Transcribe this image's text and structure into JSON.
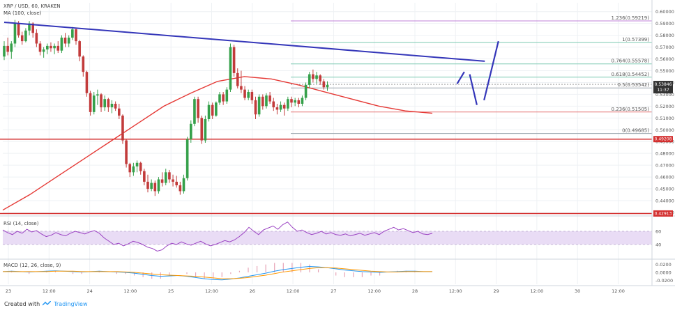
{
  "header": {
    "symbol": "XRP / USD, 60, KRAKEN",
    "ma_label": "MA (100, close)"
  },
  "footer": {
    "created_with": "Created with",
    "brand": "TradingView"
  },
  "colors": {
    "up": "#35a04a",
    "down": "#c23b3b",
    "ma": "#e53935",
    "trendline": "#3436b9",
    "support": "#d32f2f",
    "fib": "#7ac9b1",
    "fib_top": "#c080d8",
    "rsi": "#9a41c2",
    "rsi_band": "#e9dcf5",
    "macd": "#2196f3",
    "signal": "#ff9800",
    "hist_pos": "#e7a4b7",
    "hist_neg": "#e7a4b7",
    "price_tag": "#333333",
    "level_tag": "#d32f2f",
    "grid": "#eef1f4"
  },
  "chart_data": [
    {
      "type": "candlestick",
      "title": "XRP / USD, 60, KRAKEN",
      "indicator": "MA (100, close)",
      "ylim": [
        0.4288,
        0.6075
      ],
      "y_ticks": [
        "0.60000",
        "0.59000",
        "0.58000",
        "0.57000",
        "0.56000",
        "0.55000",
        "0.54000",
        "0.53000",
        "0.52000",
        "0.51000",
        "0.50000",
        "0.49000",
        "0.48000",
        "0.47000",
        "0.46000",
        "0.45000",
        "0.44000",
        "0.43000"
      ],
      "x_ticks": [
        "23",
        "12:00",
        "24",
        "12:00",
        "25",
        "12:00",
        "26",
        "12:00",
        "27",
        "12:00",
        "28",
        "12:00",
        "29",
        "12:00",
        "30",
        "12:00"
      ],
      "candles": [
        [
          0.562,
          0.575,
          0.559,
          0.571
        ],
        [
          0.571,
          0.578,
          0.563,
          0.566
        ],
        [
          0.566,
          0.575,
          0.56,
          0.573
        ],
        [
          0.573,
          0.593,
          0.57,
          0.59
        ],
        [
          0.59,
          0.592,
          0.578,
          0.58
        ],
        [
          0.58,
          0.583,
          0.572,
          0.575
        ],
        [
          0.575,
          0.586,
          0.574,
          0.584
        ],
        [
          0.584,
          0.592,
          0.58,
          0.59
        ],
        [
          0.59,
          0.591,
          0.578,
          0.582
        ],
        [
          0.582,
          0.585,
          0.57,
          0.573
        ],
        [
          0.573,
          0.575,
          0.563,
          0.566
        ],
        [
          0.566,
          0.57,
          0.561,
          0.568
        ],
        [
          0.568,
          0.573,
          0.564,
          0.571
        ],
        [
          0.571,
          0.574,
          0.566,
          0.569
        ],
        [
          0.569,
          0.573,
          0.564,
          0.571
        ],
        [
          0.571,
          0.575,
          0.565,
          0.567
        ],
        [
          0.567,
          0.58,
          0.565,
          0.578
        ],
        [
          0.578,
          0.582,
          0.57,
          0.573
        ],
        [
          0.573,
          0.58,
          0.57,
          0.578
        ],
        [
          0.578,
          0.587,
          0.576,
          0.585
        ],
        [
          0.585,
          0.586,
          0.572,
          0.575
        ],
        [
          0.575,
          0.576,
          0.558,
          0.562
        ],
        [
          0.562,
          0.563,
          0.545,
          0.549
        ],
        [
          0.549,
          0.55,
          0.528,
          0.531
        ],
        [
          0.531,
          0.533,
          0.512,
          0.515
        ],
        [
          0.515,
          0.532,
          0.513,
          0.529
        ],
        [
          0.529,
          0.534,
          0.521,
          0.53
        ],
        [
          0.53,
          0.531,
          0.515,
          0.519
        ],
        [
          0.519,
          0.529,
          0.516,
          0.526
        ],
        [
          0.526,
          0.527,
          0.515,
          0.519
        ],
        [
          0.519,
          0.525,
          0.514,
          0.522
        ],
        [
          0.522,
          0.524,
          0.516,
          0.518
        ],
        [
          0.518,
          0.522,
          0.509,
          0.512
        ],
        [
          0.512,
          0.513,
          0.488,
          0.491
        ],
        [
          0.491,
          0.492,
          0.468,
          0.471
        ],
        [
          0.471,
          0.472,
          0.46,
          0.464
        ],
        [
          0.464,
          0.472,
          0.461,
          0.469
        ],
        [
          0.469,
          0.474,
          0.464,
          0.472
        ],
        [
          0.472,
          0.473,
          0.462,
          0.465
        ],
        [
          0.465,
          0.467,
          0.453,
          0.456
        ],
        [
          0.456,
          0.462,
          0.447,
          0.45
        ],
        [
          0.45,
          0.458,
          0.448,
          0.455
        ],
        [
          0.455,
          0.457,
          0.444,
          0.448
        ],
        [
          0.448,
          0.46,
          0.446,
          0.458
        ],
        [
          0.458,
          0.464,
          0.452,
          0.455
        ],
        [
          0.455,
          0.467,
          0.453,
          0.464
        ],
        [
          0.464,
          0.466,
          0.455,
          0.458
        ],
        [
          0.458,
          0.462,
          0.452,
          0.456
        ],
        [
          0.456,
          0.461,
          0.451,
          0.453
        ],
        [
          0.453,
          0.456,
          0.445,
          0.448
        ],
        [
          0.448,
          0.462,
          0.446,
          0.459
        ],
        [
          0.459,
          0.494,
          0.457,
          0.492
        ],
        [
          0.492,
          0.508,
          0.489,
          0.505
        ],
        [
          0.505,
          0.528,
          0.503,
          0.526
        ],
        [
          0.526,
          0.528,
          0.506,
          0.51
        ],
        [
          0.51,
          0.512,
          0.488,
          0.491
        ],
        [
          0.491,
          0.512,
          0.489,
          0.509
        ],
        [
          0.509,
          0.524,
          0.507,
          0.521
        ],
        [
          0.521,
          0.523,
          0.509,
          0.512
        ],
        [
          0.512,
          0.524,
          0.511,
          0.523
        ],
        [
          0.523,
          0.532,
          0.521,
          0.53
        ],
        [
          0.53,
          0.532,
          0.521,
          0.524
        ],
        [
          0.524,
          0.536,
          0.522,
          0.534
        ],
        [
          0.534,
          0.573,
          0.532,
          0.57
        ],
        [
          0.57,
          0.572,
          0.545,
          0.548
        ],
        [
          0.548,
          0.552,
          0.535,
          0.537
        ],
        [
          0.537,
          0.55,
          0.531,
          0.534
        ],
        [
          0.534,
          0.537,
          0.525,
          0.527
        ],
        [
          0.527,
          0.534,
          0.525,
          0.532
        ],
        [
          0.532,
          0.534,
          0.522,
          0.525
        ],
        [
          0.525,
          0.528,
          0.509,
          0.513
        ],
        [
          0.513,
          0.53,
          0.511,
          0.528
        ],
        [
          0.528,
          0.53,
          0.517,
          0.52
        ],
        [
          0.52,
          0.531,
          0.518,
          0.529
        ],
        [
          0.529,
          0.532,
          0.522,
          0.524
        ],
        [
          0.524,
          0.527,
          0.516,
          0.519
        ],
        [
          0.519,
          0.522,
          0.513,
          0.517
        ],
        [
          0.517,
          0.524,
          0.515,
          0.521
        ],
        [
          0.521,
          0.523,
          0.512,
          0.518
        ],
        [
          0.518,
          0.528,
          0.516,
          0.526
        ],
        [
          0.526,
          0.528,
          0.519,
          0.523
        ],
        [
          0.523,
          0.527,
          0.52,
          0.525
        ],
        [
          0.525,
          0.527,
          0.519,
          0.522
        ],
        [
          0.522,
          0.529,
          0.52,
          0.527
        ],
        [
          0.527,
          0.54,
          0.525,
          0.538
        ],
        [
          0.538,
          0.549,
          0.535,
          0.547
        ],
        [
          0.547,
          0.551,
          0.54,
          0.543
        ],
        [
          0.543,
          0.549,
          0.539,
          0.546
        ],
        [
          0.546,
          0.547,
          0.538,
          0.541
        ],
        [
          0.541,
          0.543,
          0.534,
          0.536
        ],
        [
          0.536,
          0.541,
          0.533,
          0.538
        ]
      ],
      "ma_100": [
        0.432,
        0.445,
        0.46,
        0.475,
        0.49,
        0.505,
        0.52,
        0.531,
        0.541,
        0.545,
        0.543,
        0.538,
        0.532,
        0.526,
        0.52,
        0.516,
        0.514
      ],
      "trendline": [
        [
          0,
          0.591
        ],
        [
          95,
          0.558
        ]
      ],
      "projection": [
        [
          97,
          0.539
        ],
        [
          99,
          0.549
        ],
        [
          100.5,
          0.547
        ],
        [
          102.5,
          0.521
        ],
        [
          104.5,
          0.525
        ],
        [
          108.5,
          0.575
        ]
      ],
      "support_levels": [
        {
          "value": 0.49208,
          "label": "0.49208"
        },
        {
          "value": 0.42913,
          "label": "0.42913"
        }
      ],
      "price_tag": {
        "value": 0.53846,
        "label": "0.53846",
        "sub": "11:37"
      },
      "fib_levels": [
        {
          "ratio": "1.236",
          "value": 0.59219,
          "label": "1.236(0.59219)"
        },
        {
          "ratio": "1",
          "value": 0.57399,
          "label": "1(0.57399)"
        },
        {
          "ratio": "0.764",
          "value": 0.55578,
          "label": "0.764(0.55578)"
        },
        {
          "ratio": "0.618",
          "value": 0.54452,
          "label": "0.618(0.54452)"
        },
        {
          "ratio": "0.5",
          "value": 0.53542,
          "label": "0.5(0.53542)"
        },
        {
          "ratio": "0.236",
          "value": 0.51505,
          "label": "0.236(0.51505)"
        },
        {
          "ratio": "0",
          "value": 0.49685,
          "label": "0(0.49685)"
        }
      ]
    },
    {
      "type": "line",
      "title": "RSI (14, close)",
      "ylim": [
        20,
        80
      ],
      "y_ticks": [
        "60",
        "40"
      ],
      "band": [
        40,
        60
      ],
      "values": [
        62,
        58,
        55,
        60,
        57,
        63,
        59,
        61,
        56,
        52,
        54,
        58,
        55,
        53,
        57,
        60,
        58,
        56,
        59,
        61,
        57,
        50,
        45,
        40,
        42,
        38,
        41,
        45,
        43,
        40,
        36,
        34,
        30,
        32,
        38,
        42,
        40,
        44,
        41,
        39,
        42,
        45,
        41,
        38,
        40,
        43,
        46,
        44,
        47,
        52,
        58,
        66,
        60,
        55,
        62,
        65,
        68,
        63,
        70,
        74,
        66,
        60,
        62,
        58,
        55,
        57,
        60,
        56,
        58,
        55,
        54,
        56,
        53,
        55,
        57,
        54,
        56,
        58,
        55,
        60,
        63,
        66,
        62,
        64,
        61,
        58,
        60,
        56,
        55,
        57
      ]
    },
    {
      "type": "line",
      "title": "MACD (12, 26, close, 9)",
      "ylim": [
        -0.03,
        0.03
      ],
      "y_ticks": [
        "0.0200",
        "0.0000",
        "-0.0200"
      ],
      "macd": [
        0.002,
        0.003,
        0.002,
        0.001,
        0.002,
        0.003,
        0.004,
        0.003,
        0.002,
        0.001,
        0.002,
        0.003,
        0.002,
        0.001,
        0.0,
        -0.002,
        -0.005,
        -0.008,
        -0.01,
        -0.009,
        -0.008,
        -0.01,
        -0.013,
        -0.016,
        -0.018,
        -0.019,
        -0.017,
        -0.014,
        -0.01,
        -0.006,
        -0.002,
        0.003,
        0.007,
        0.01,
        0.013,
        0.015,
        0.014,
        0.012,
        0.009,
        0.006,
        0.004,
        0.002,
        0.001,
        0.0,
        0.001,
        0.002,
        0.003,
        0.003,
        0.002,
        0.002
      ],
      "signal": [
        0.002,
        0.002,
        0.002,
        0.002,
        0.002,
        0.002,
        0.003,
        0.003,
        0.003,
        0.002,
        0.002,
        0.002,
        0.002,
        0.002,
        0.001,
        0.0,
        -0.002,
        -0.004,
        -0.006,
        -0.007,
        -0.008,
        -0.009,
        -0.01,
        -0.012,
        -0.014,
        -0.016,
        -0.016,
        -0.015,
        -0.013,
        -0.01,
        -0.007,
        -0.003,
        0.001,
        0.004,
        0.007,
        0.01,
        0.012,
        0.012,
        0.011,
        0.009,
        0.007,
        0.005,
        0.003,
        0.002,
        0.001,
        0.001,
        0.002,
        0.002,
        0.002,
        0.002
      ]
    }
  ]
}
